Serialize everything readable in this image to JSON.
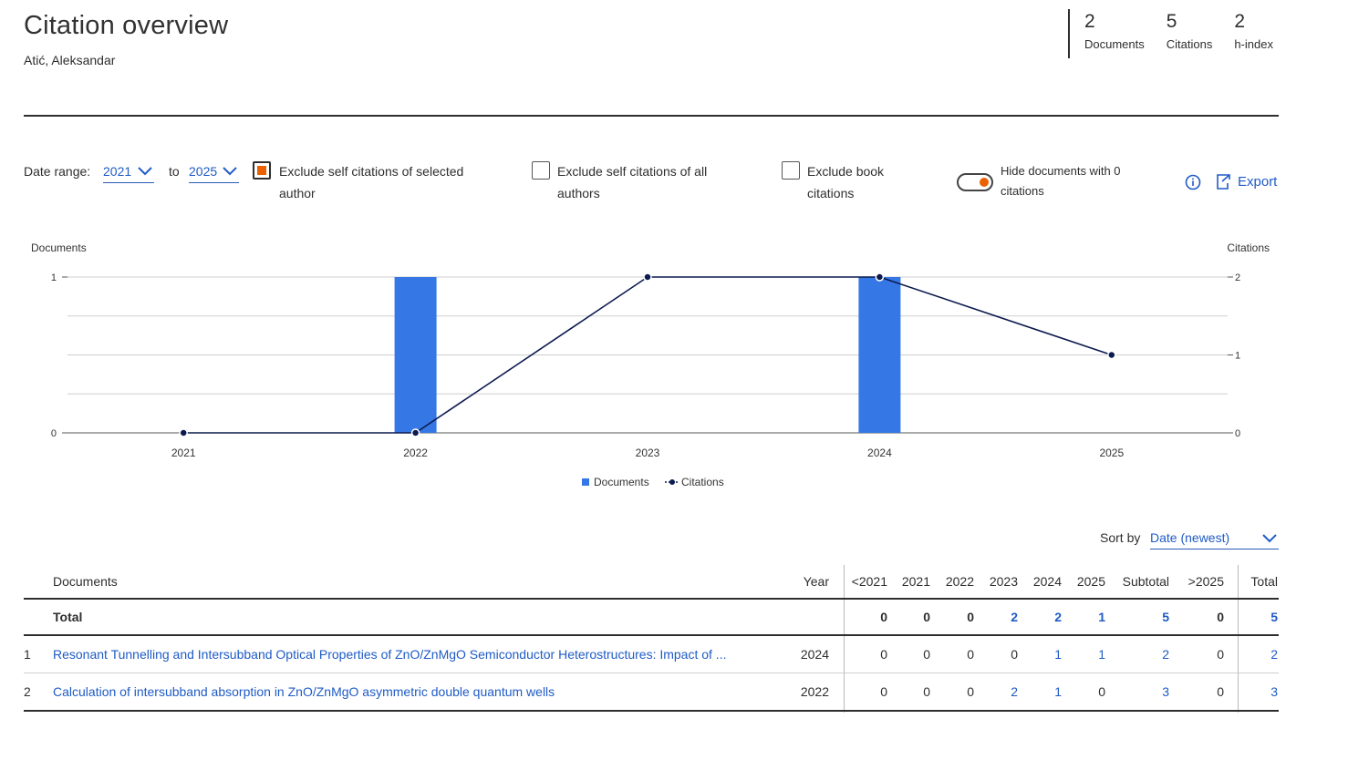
{
  "header": {
    "title": "Citation overview",
    "author": "Atić, Aleksandar",
    "metrics": [
      {
        "value": "2",
        "label": "Documents"
      },
      {
        "value": "5",
        "label": "Citations"
      },
      {
        "value": "2",
        "label": "h-index"
      }
    ]
  },
  "controls": {
    "date_range_label": "Date range:",
    "from_year": "2021",
    "to_label": "to",
    "to_year": "2025",
    "exclude_self_selected": {
      "label_line1": "Exclude self citations of selected",
      "label_line2": "author",
      "checked": true
    },
    "exclude_self_all": {
      "label_line1": "Exclude self citations of all",
      "label_line2": "authors",
      "checked": false
    },
    "exclude_book": {
      "label_line1": "Exclude book",
      "label_line2": "citations",
      "checked": false
    },
    "hide_zero": {
      "label_line1": "Hide documents with 0",
      "label_line2": "citations",
      "on": true
    },
    "export_label": "Export",
    "accent_color": "#eb6100",
    "link_color": "#1f5bc6"
  },
  "chart_data": {
    "type": "bar+line",
    "categories": [
      "2021",
      "2022",
      "2023",
      "2024",
      "2025"
    ],
    "series": [
      {
        "name": "Documents",
        "type": "bar",
        "axis": "left",
        "values": [
          0,
          1,
          0,
          1,
          0
        ],
        "color": "#3578e5"
      },
      {
        "name": "Citations",
        "type": "line",
        "axis": "right",
        "values": [
          0,
          0,
          2,
          2,
          1
        ],
        "color": "#0c1a4f"
      }
    ],
    "ylabel_left": "Documents",
    "ylabel_right": "Citations",
    "ylim_left": [
      0,
      1
    ],
    "ylim_right": [
      0,
      2
    ],
    "yticks_left": [
      "0",
      "1"
    ],
    "yticks_right": [
      "0",
      "1",
      "2"
    ],
    "grid": true,
    "legend_position": "bottom-center"
  },
  "sort": {
    "label": "Sort by",
    "value": "Date (newest)"
  },
  "table": {
    "columns": [
      "Documents",
      "Year",
      "<2021",
      "2021",
      "2022",
      "2023",
      "2024",
      "2025",
      "Subtotal",
      ">2025",
      "Total"
    ],
    "total_row": {
      "label": "Total",
      "values": [
        "0",
        "0",
        "0",
        "2",
        "2",
        "1",
        "5",
        "0",
        "5"
      ]
    },
    "rows": [
      {
        "index": "1",
        "title": "Resonant Tunnelling and Intersubband Optical Properties of ZnO/ZnMgO Semiconductor Heterostructures: Impact of ...",
        "year": "2024",
        "values": [
          "0",
          "0",
          "0",
          "0",
          "1",
          "1",
          "2",
          "0",
          "2"
        ]
      },
      {
        "index": "2",
        "title": "Calculation of intersubband absorption in ZnO/ZnMgO asymmetric double quantum wells",
        "year": "2022",
        "values": [
          "0",
          "0",
          "0",
          "2",
          "1",
          "0",
          "3",
          "0",
          "3"
        ]
      }
    ]
  }
}
